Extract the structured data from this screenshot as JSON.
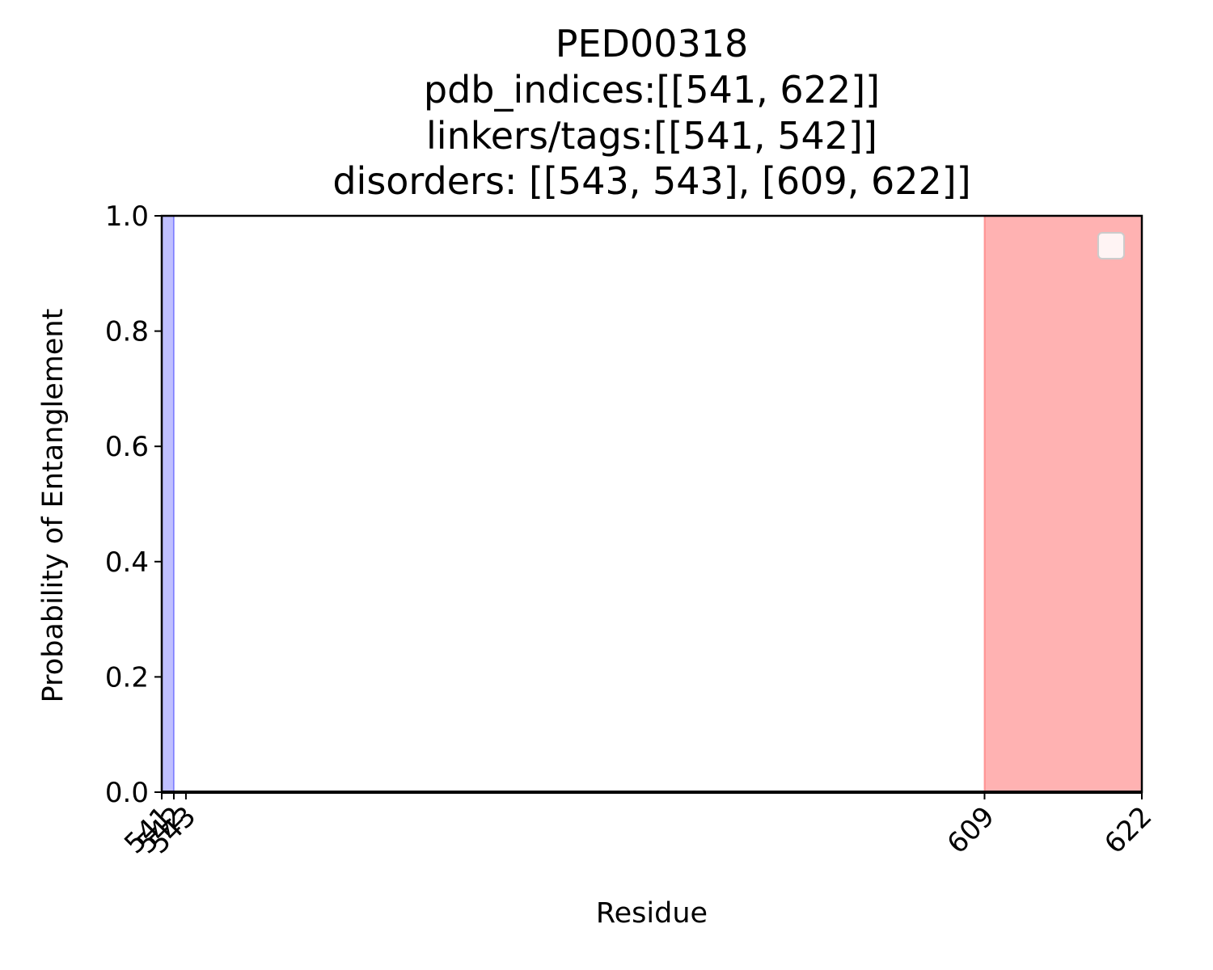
{
  "chart_data": {
    "type": "line",
    "title_lines": [
      "PED00318",
      "pdb_indices:[[541, 622]]",
      "linkers/tags:[[541, 542]]",
      "disorders: [[543, 543], [609, 622]]"
    ],
    "xlabel": "Residue",
    "ylabel": "Probability of Entanglement",
    "xlim": [
      541,
      622
    ],
    "ylim": [
      0,
      1
    ],
    "x_ticks": [
      541,
      542,
      543,
      609,
      622
    ],
    "y_ticks": [
      0.0,
      0.2,
      0.4,
      0.6,
      0.8,
      1.0
    ],
    "y_tick_labels": [
      "0.0",
      "0.2",
      "0.4",
      "0.6",
      "0.8",
      "1.0"
    ],
    "series": [
      {
        "x": [
          541,
          622
        ],
        "y": [
          0,
          0
        ],
        "color": "#000000"
      }
    ],
    "linker_spans": [
      {
        "start": 541,
        "end": 542,
        "color": "#0000ff"
      }
    ],
    "disorder_spans": [
      {
        "start": 543,
        "end": 543,
        "color": "#ff0000"
      },
      {
        "start": 609,
        "end": 622,
        "color": "#ff0000"
      }
    ],
    "legend": {
      "placement": "top-right",
      "entries": []
    },
    "grid": false
  }
}
